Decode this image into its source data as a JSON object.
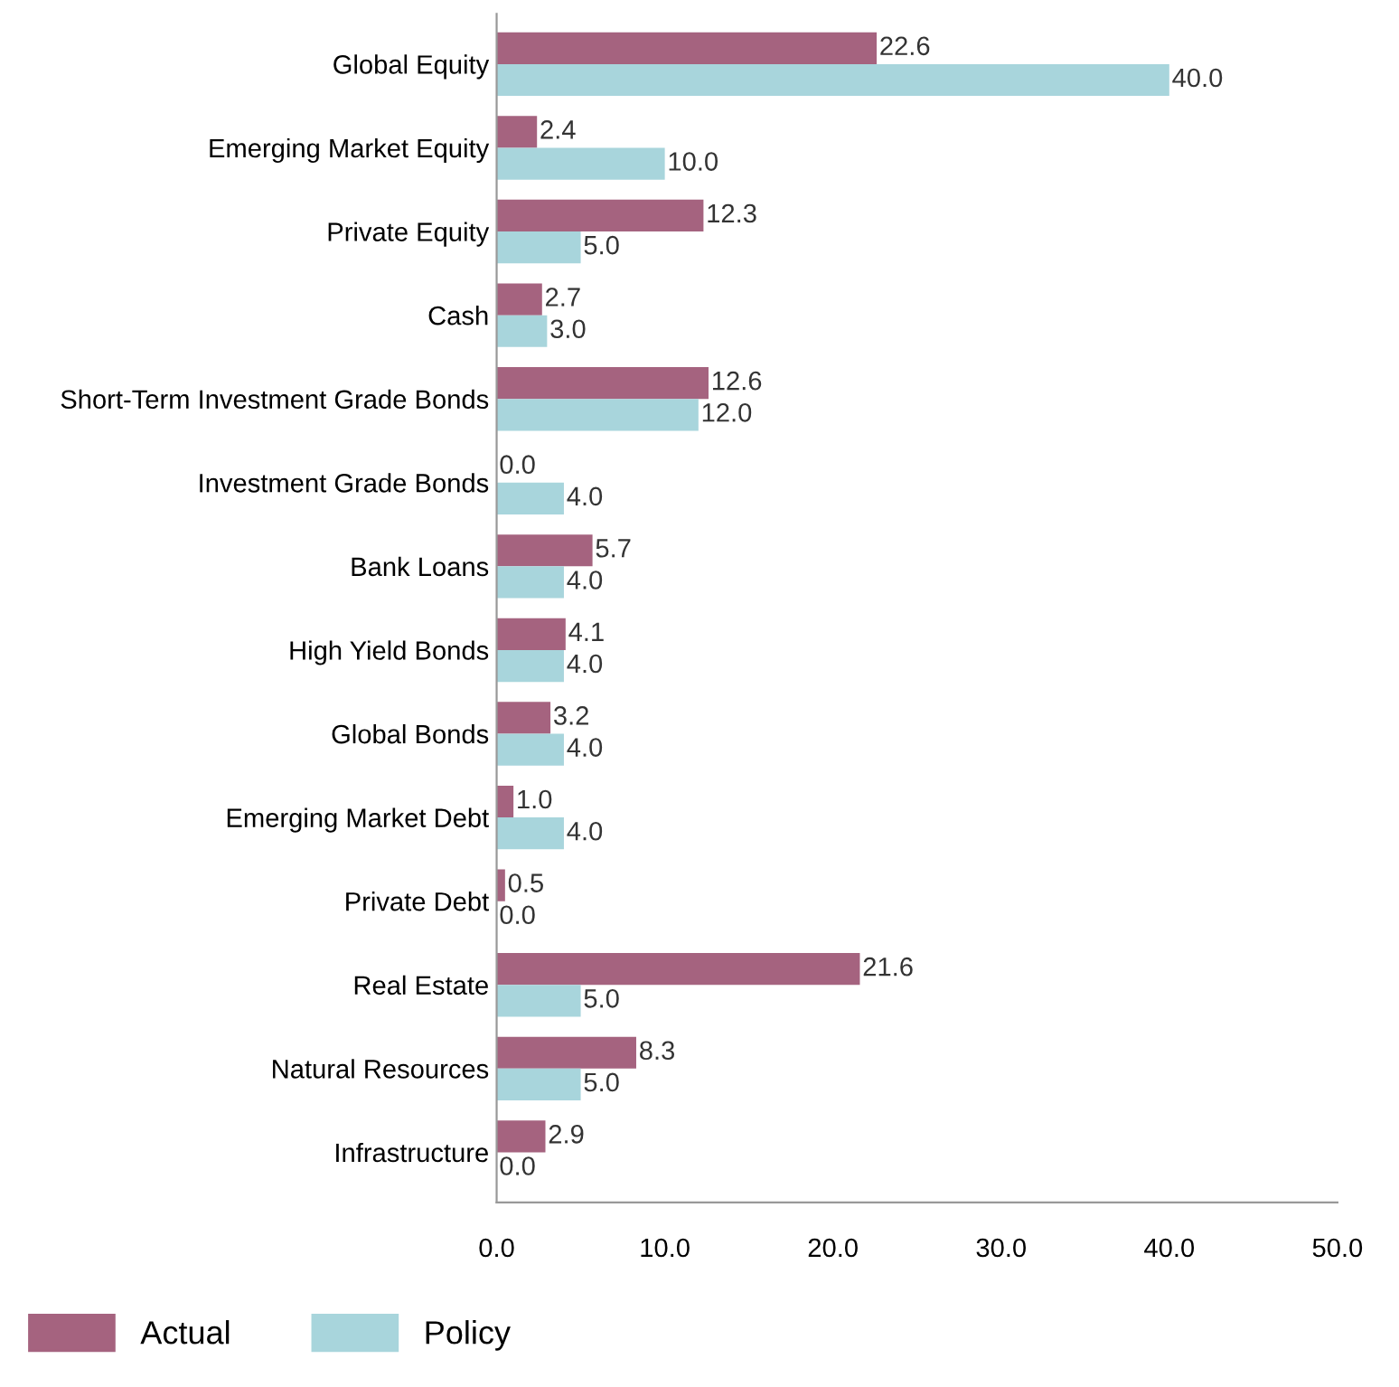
{
  "chart_data": {
    "type": "bar",
    "orientation": "horizontal",
    "categories": [
      "Global Equity",
      "Emerging Market Equity",
      "Private Equity",
      "Cash",
      "Short-Term Investment Grade Bonds",
      "Investment Grade Bonds",
      "Bank Loans",
      "High Yield Bonds",
      "Global Bonds",
      "Emerging Market Debt",
      "Private Debt",
      "Real Estate",
      "Natural Resources",
      "Infrastructure"
    ],
    "series": [
      {
        "name": "Actual",
        "color": "#a5637f",
        "values": [
          22.6,
          2.4,
          12.3,
          2.7,
          12.6,
          0.0,
          5.7,
          4.1,
          3.2,
          1.0,
          0.5,
          21.6,
          8.3,
          2.9
        ],
        "value_labels": [
          "22.6",
          "2.4",
          "12.3",
          "2.7",
          "12.6",
          "0.0",
          "5.7",
          "4.1",
          "3.2",
          "1.0",
          "0.5",
          "21.6",
          "8.3",
          "2.9"
        ]
      },
      {
        "name": "Policy",
        "color": "#a8d5dc",
        "values": [
          40.0,
          10.0,
          5.0,
          3.0,
          12.0,
          4.0,
          4.0,
          4.0,
          4.0,
          4.0,
          0.0,
          5.0,
          5.0,
          0.0
        ],
        "value_labels": [
          "40.0",
          "10.0",
          "5.0",
          "3.0",
          "12.0",
          "4.0",
          "4.0",
          "4.0",
          "4.0",
          "4.0",
          "0.0",
          "5.0",
          "5.0",
          "0.0"
        ]
      }
    ],
    "xlim": [
      0,
      50
    ],
    "xticks": [
      {
        "value": 0,
        "label": "0.0"
      },
      {
        "value": 10,
        "label": "10.0"
      },
      {
        "value": 20,
        "label": "20.0"
      },
      {
        "value": 30,
        "label": "30.0"
      },
      {
        "value": 40,
        "label": "40.0"
      },
      {
        "value": 50,
        "label": "50.0"
      }
    ],
    "grid": false,
    "legend": "bottom left"
  }
}
